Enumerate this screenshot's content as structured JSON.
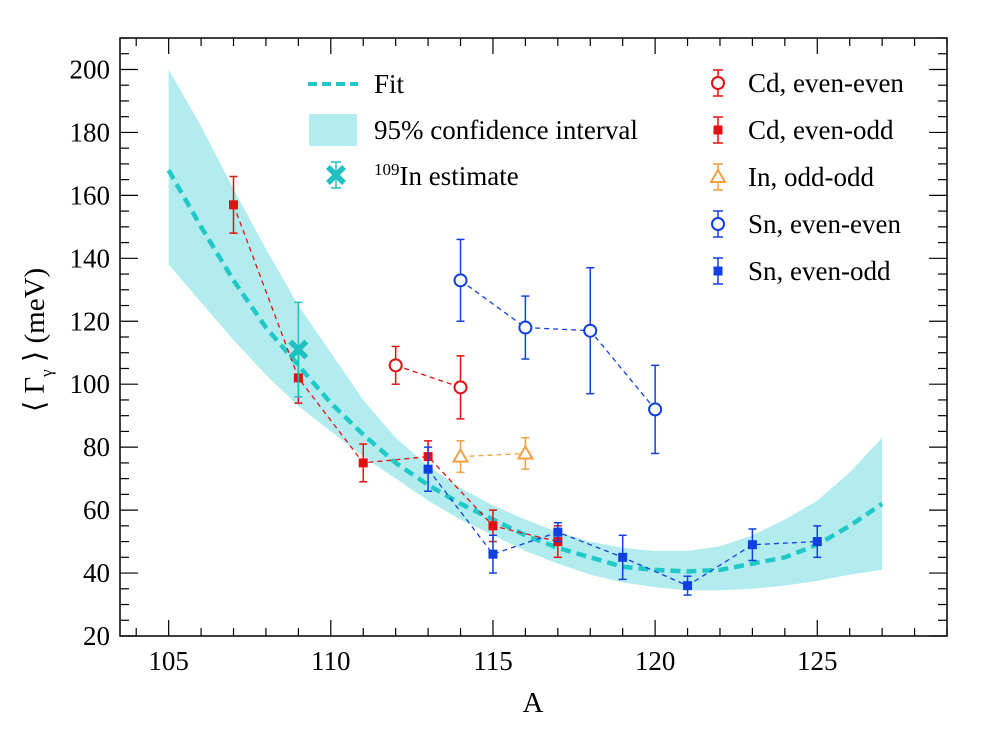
{
  "chart_data": {
    "type": "scatter",
    "title": "",
    "xlabel": "A",
    "ylabel": "⟨ Γ",
    "ylabel_sub": "γ",
    "ylabel_suffix": " ⟩ (meV)",
    "xlim": [
      103.5,
      129
    ],
    "ylim": [
      20,
      210
    ],
    "xticks": [
      105,
      110,
      115,
      120,
      125
    ],
    "yticks": [
      20,
      40,
      60,
      80,
      100,
      120,
      140,
      160,
      180,
      200
    ],
    "colors": {
      "cd": "#e41010",
      "in": "#f0a040",
      "sn": "#1040e0",
      "fit": "#20c8c8",
      "band": "#b2ecef",
      "estimate": "#20c0c0"
    },
    "fit": {
      "label": "Fit",
      "x": [
        105,
        106,
        107,
        108,
        109,
        110,
        111,
        112,
        113,
        114,
        115,
        116,
        117,
        118,
        119,
        120,
        121,
        122,
        123,
        124,
        125,
        126,
        127
      ],
      "y": [
        168,
        150,
        133,
        118,
        106,
        94,
        84,
        75,
        68,
        62,
        57,
        52,
        48,
        45,
        42,
        41,
        40.5,
        41,
        43,
        45,
        49,
        55,
        62
      ]
    },
    "confidence_band": {
      "label": "95% confidence interval",
      "x": [
        105,
        106,
        107,
        108,
        109,
        110,
        111,
        112,
        113,
        114,
        115,
        116,
        117,
        118,
        119,
        120,
        121,
        122,
        123,
        124,
        125,
        126,
        127
      ],
      "lower": [
        138,
        126,
        114,
        103,
        93,
        85,
        77,
        70,
        63,
        57,
        52,
        47,
        43,
        39.5,
        37,
        35.5,
        34.5,
        34.5,
        35,
        36,
        37.5,
        39.5,
        41
      ],
      "upper": [
        200,
        182,
        162,
        143,
        125,
        110,
        95,
        83,
        74,
        67,
        61.5,
        57,
        53,
        50,
        48,
        47,
        47,
        48.5,
        52,
        57,
        63,
        72,
        83
      ]
    },
    "estimate": {
      "label_sup": "109",
      "label": "In estimate",
      "x": 109,
      "y": 111,
      "err": 15
    },
    "series": [
      {
        "name": "Cd, even-even",
        "color_key": "cd",
        "marker": "circle-open",
        "points": [
          {
            "x": 112,
            "y": 106,
            "err": 6
          },
          {
            "x": 114,
            "y": 99,
            "err": 10
          }
        ]
      },
      {
        "name": "Cd, even-odd",
        "color_key": "cd",
        "marker": "square-filled",
        "points": [
          {
            "x": 107,
            "y": 157,
            "err": 9
          },
          {
            "x": 109,
            "y": 102,
            "err": 8
          },
          {
            "x": 111,
            "y": 75,
            "err": 6
          },
          {
            "x": 113,
            "y": 77,
            "err": 5
          },
          {
            "x": 115,
            "y": 55,
            "err": 5
          },
          {
            "x": 117,
            "y": 50,
            "err": 5
          }
        ]
      },
      {
        "name": "In, odd-odd",
        "color_key": "in",
        "marker": "triangle-open",
        "points": [
          {
            "x": 114,
            "y": 77,
            "err": 5
          },
          {
            "x": 116,
            "y": 78,
            "err": 5
          }
        ]
      },
      {
        "name": "Sn, even-even",
        "color_key": "sn",
        "marker": "circle-open",
        "points": [
          {
            "x": 114,
            "y": 133,
            "err": 13
          },
          {
            "x": 116,
            "y": 118,
            "err": 10
          },
          {
            "x": 118,
            "y": 117,
            "err": 20
          },
          {
            "x": 120,
            "y": 92,
            "err": 14
          }
        ]
      },
      {
        "name": "Sn, even-odd",
        "color_key": "sn",
        "marker": "square-filled",
        "points": [
          {
            "x": 113,
            "y": 73,
            "err": 7
          },
          {
            "x": 115,
            "y": 46,
            "err": 6
          },
          {
            "x": 117,
            "y": 53,
            "err": 3
          },
          {
            "x": 119,
            "y": 45,
            "err": 7
          },
          {
            "x": 121,
            "y": 36,
            "err": 3
          },
          {
            "x": 123,
            "y": 49,
            "err": 5
          },
          {
            "x": 125,
            "y": 50,
            "err": 5
          }
        ]
      }
    ]
  }
}
